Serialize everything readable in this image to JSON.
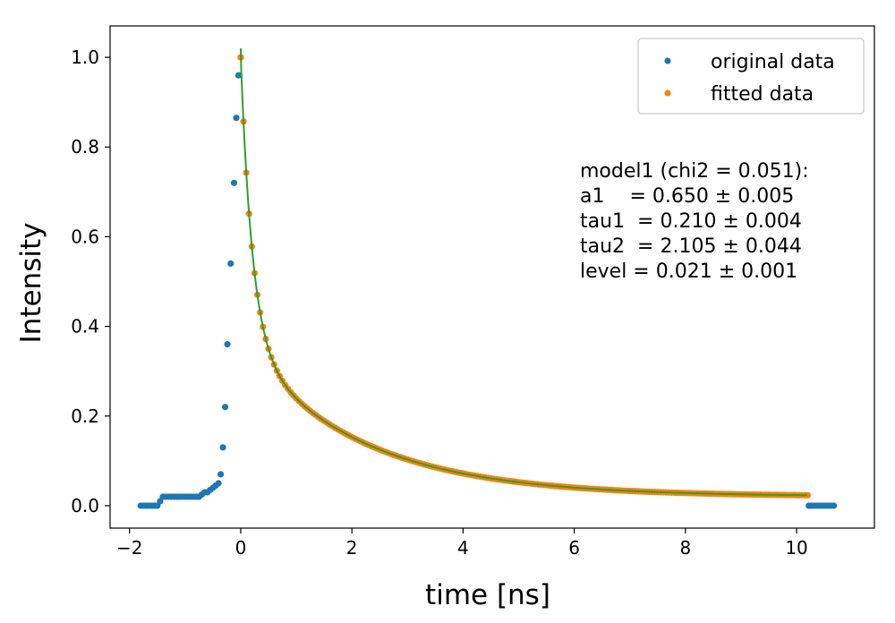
{
  "chart_data": {
    "type": "scatter",
    "xlabel": "time [ns]",
    "ylabel": "Intensity",
    "xlim": [
      -2.35,
      11.4
    ],
    "ylim": [
      -0.05,
      1.07
    ],
    "xticks": [
      -2,
      0,
      2,
      4,
      6,
      8,
      10
    ],
    "xtick_labels": [
      "−2",
      "0",
      "2",
      "4",
      "6",
      "8",
      "10"
    ],
    "yticks": [
      0.0,
      0.2,
      0.4,
      0.6,
      0.8,
      1.0
    ],
    "ytick_labels": [
      "0.0",
      "0.2",
      "0.4",
      "0.6",
      "0.8",
      "1.0"
    ],
    "grid": false,
    "legend_position": "top-right",
    "model": {
      "a1": 0.65,
      "tau1": 0.21,
      "tau2": 2.105,
      "level": 0.021,
      "x_start": 0.0,
      "x_end": 10.2,
      "peak": 1.02
    },
    "series": [
      {
        "name": "original data",
        "color": "#1f77b4",
        "marker": "point",
        "points": [
          [
            -1.8,
            0.0
          ],
          [
            -1.75,
            0.0
          ],
          [
            -1.7,
            0.0
          ],
          [
            -1.65,
            0.0
          ],
          [
            -1.6,
            0.0
          ],
          [
            -1.55,
            0.0
          ],
          [
            -1.5,
            0.0
          ],
          [
            -1.45,
            0.01
          ],
          [
            -1.4,
            0.02
          ],
          [
            -1.35,
            0.02
          ],
          [
            -1.3,
            0.02
          ],
          [
            -1.25,
            0.02
          ],
          [
            -1.2,
            0.02
          ],
          [
            -1.15,
            0.02
          ],
          [
            -1.1,
            0.02
          ],
          [
            -1.05,
            0.02
          ],
          [
            -1.0,
            0.02
          ],
          [
            -0.95,
            0.02
          ],
          [
            -0.9,
            0.02
          ],
          [
            -0.85,
            0.02
          ],
          [
            -0.8,
            0.02
          ],
          [
            -0.75,
            0.02
          ],
          [
            -0.7,
            0.025
          ],
          [
            -0.65,
            0.03
          ],
          [
            -0.6,
            0.03
          ],
          [
            -0.55,
            0.035
          ],
          [
            -0.5,
            0.04
          ],
          [
            -0.45,
            0.045
          ],
          [
            -0.4,
            0.05
          ],
          [
            -0.36,
            0.07
          ],
          [
            -0.32,
            0.13
          ],
          [
            -0.28,
            0.22
          ],
          [
            -0.24,
            0.36
          ],
          [
            -0.18,
            0.54
          ],
          [
            -0.12,
            0.72
          ],
          [
            -0.08,
            0.865
          ],
          [
            -0.04,
            0.96
          ],
          [
            0.0,
            1.0
          ],
          [
            10.22,
            0.0
          ],
          [
            10.27,
            0.0
          ],
          [
            10.32,
            0.0
          ],
          [
            10.37,
            0.0
          ],
          [
            10.42,
            0.0
          ],
          [
            10.47,
            0.0
          ],
          [
            10.52,
            0.0
          ],
          [
            10.57,
            0.0
          ],
          [
            10.62,
            0.0
          ],
          [
            10.67,
            0.0
          ]
        ]
      },
      {
        "name": "fitted data",
        "color": "#ff7f0e",
        "marker": "point",
        "model_range": [
          0.0,
          10.2,
          0.05
        ]
      },
      {
        "name": "fit",
        "color": "#2ca02c",
        "marker": "line"
      }
    ],
    "legend": [
      "original data",
      "fitted data"
    ],
    "annotation": [
      "model1 (chi2 = 0.051):",
      "a1    = 0.650 ± 0.005",
      "tau1  = 0.210 ± 0.004",
      "tau2  = 2.105 ± 0.044",
      "level = 0.021 ± 0.001"
    ]
  }
}
